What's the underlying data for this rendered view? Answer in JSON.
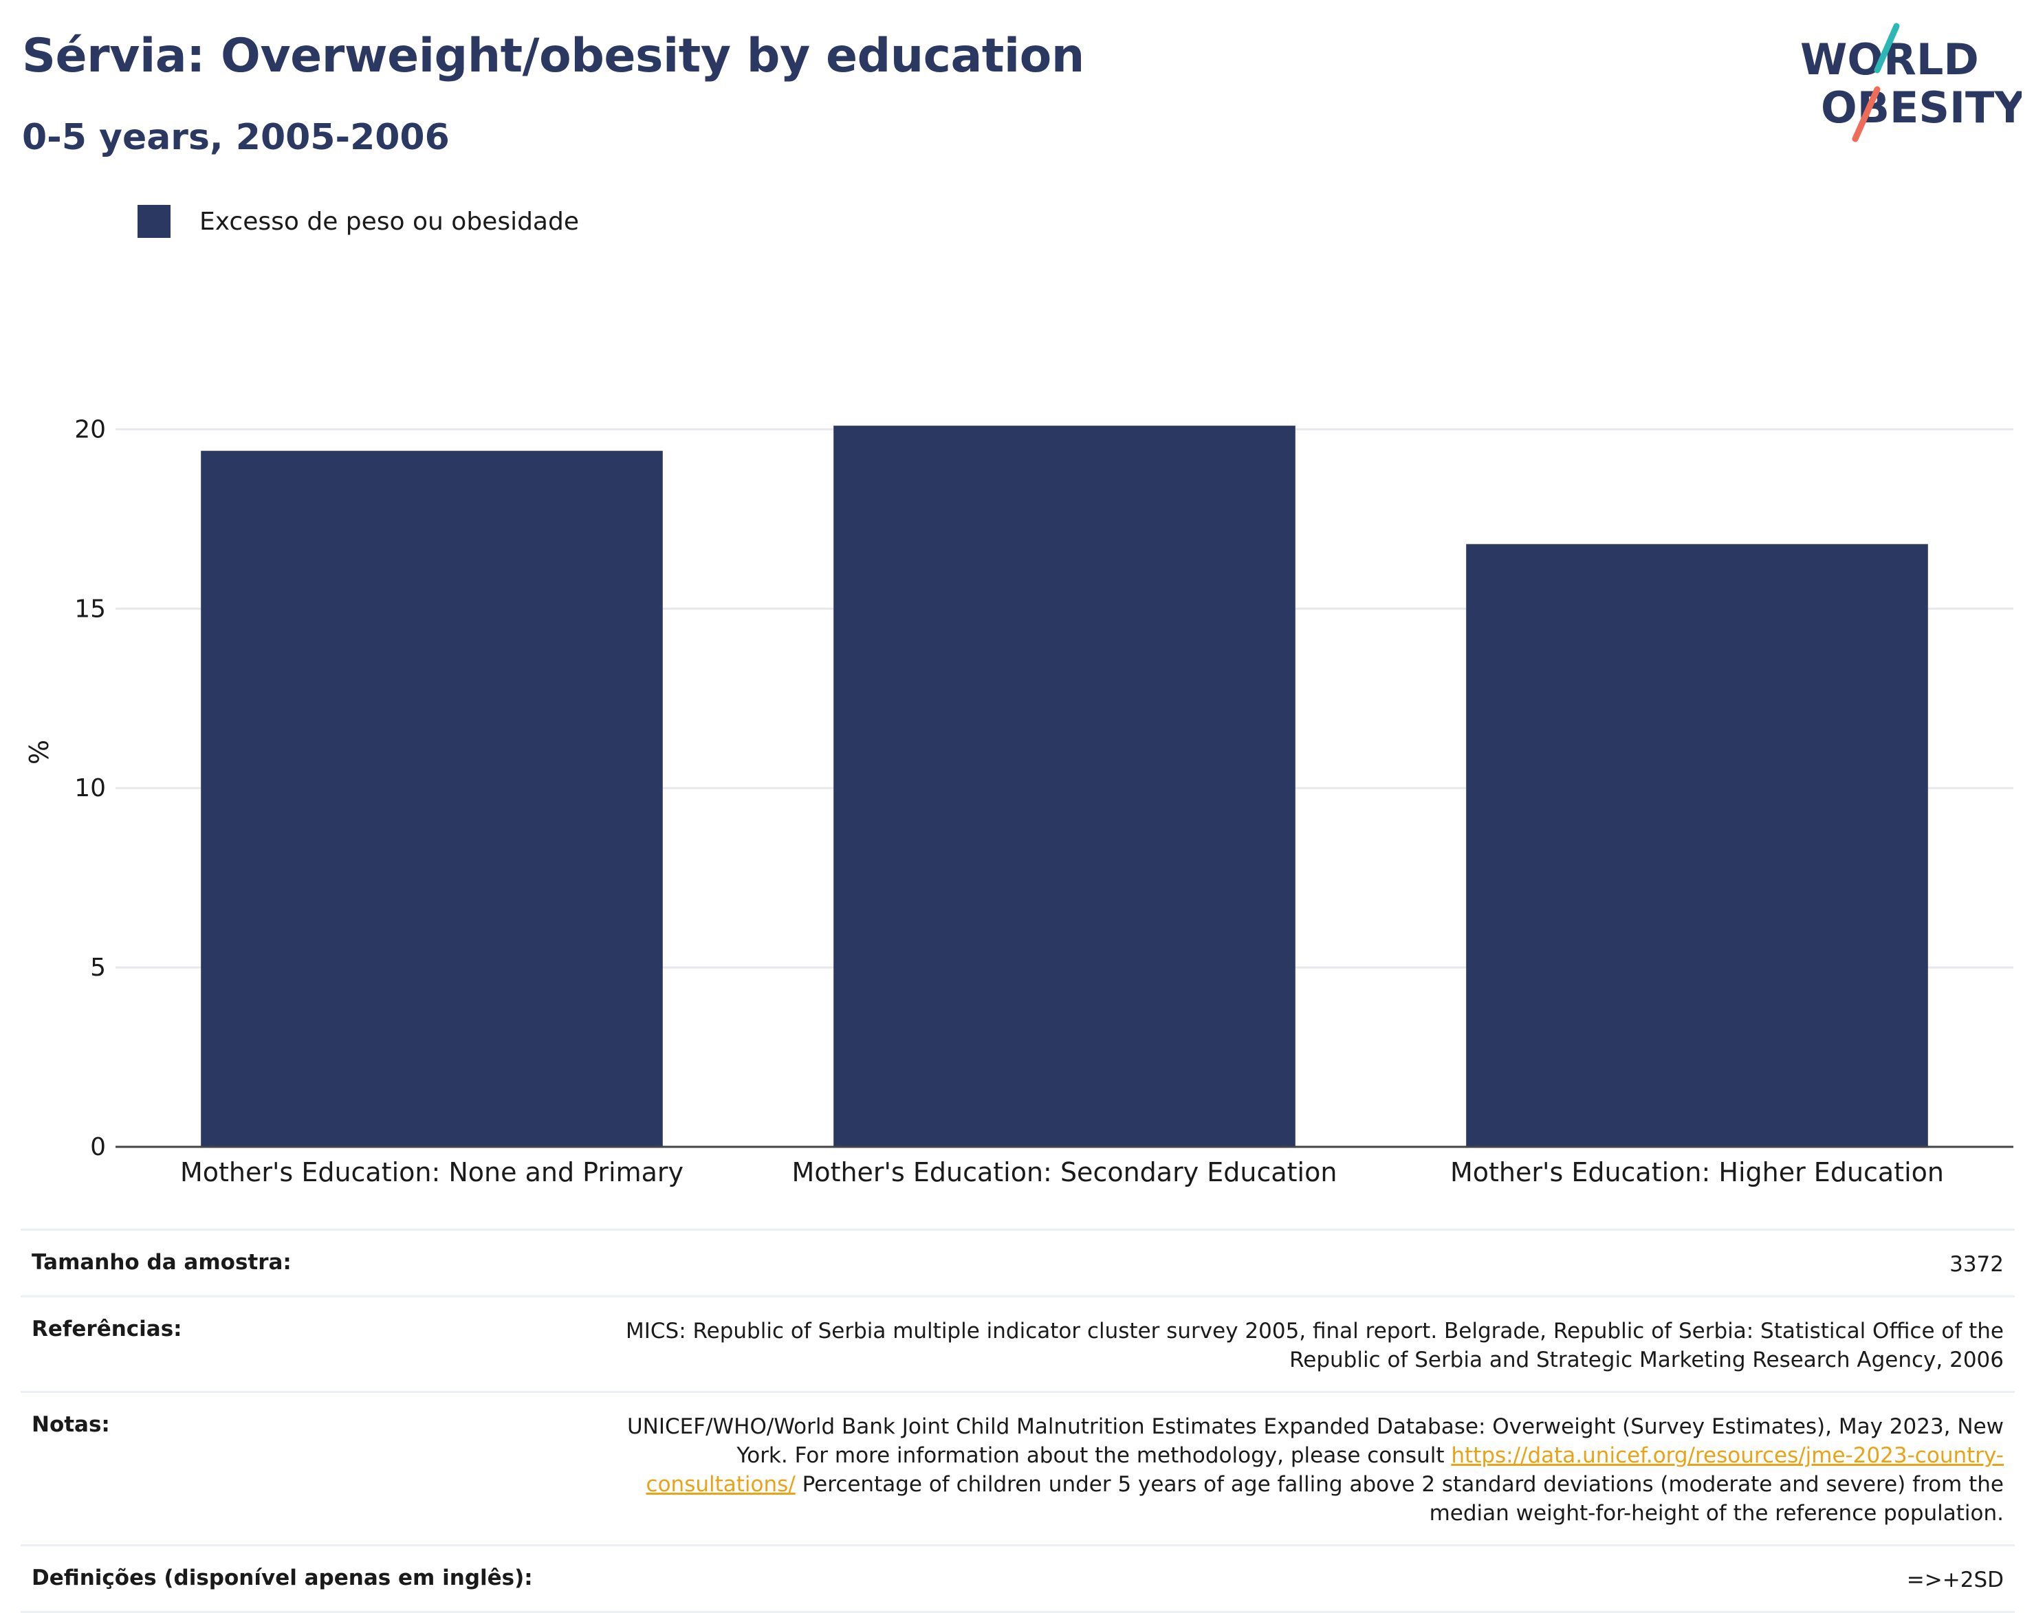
{
  "header": {
    "title": "Sérvia: Overweight/obesity by education",
    "subtitle": "0-5 years, 2005-2006"
  },
  "logo": {
    "line1": "WORLD",
    "line2": "OBESITY",
    "icon": "world-obesity-logo"
  },
  "colors": {
    "bar": "#2b3862",
    "grid": "#e6e8ee",
    "axis": "#444444",
    "link": "#e8a317"
  },
  "chart_data": {
    "type": "bar",
    "categories": [
      "Mother's Education: None and Primary",
      "Mother's Education: Secondary Education",
      "Mother's Education: Higher Education"
    ],
    "series": [
      {
        "name": "Excesso de peso ou obesidade",
        "values": [
          19.4,
          20.1,
          16.8
        ]
      }
    ],
    "ylabel": "%",
    "ylim": [
      0,
      22
    ],
    "yticks": [
      0,
      5,
      10,
      15,
      20
    ],
    "grid": true,
    "legend": "top-left"
  },
  "info": {
    "sample_label": "Tamanho da amostra:",
    "sample_value": "3372",
    "refs_label": "Referências:",
    "refs_value": "MICS: Republic of Serbia multiple indicator cluster survey 2005, final report. Belgrade, Republic of Serbia: Statistical Office of the Republic of Serbia and Strategic Marketing Research Agency, 2006",
    "notes_label": "Notas:",
    "notes_text1": "UNICEF/WHO/World Bank Joint Child Malnutrition Estimates Expanded Database: Overweight (Survey Estimates), May 2023, New York. For more information about the methodology, please consult ",
    "notes_link": "https://data.unicef.org/resources/jme-2023-country-consultations/",
    "notes_text2": " Percentage of children under 5 years of age falling above 2 standard deviations (moderate and severe) from the median weight-for-height of the reference population.",
    "defs_label": "Definições (disponível apenas em inglês):",
    "defs_value": "=>+2SD"
  }
}
